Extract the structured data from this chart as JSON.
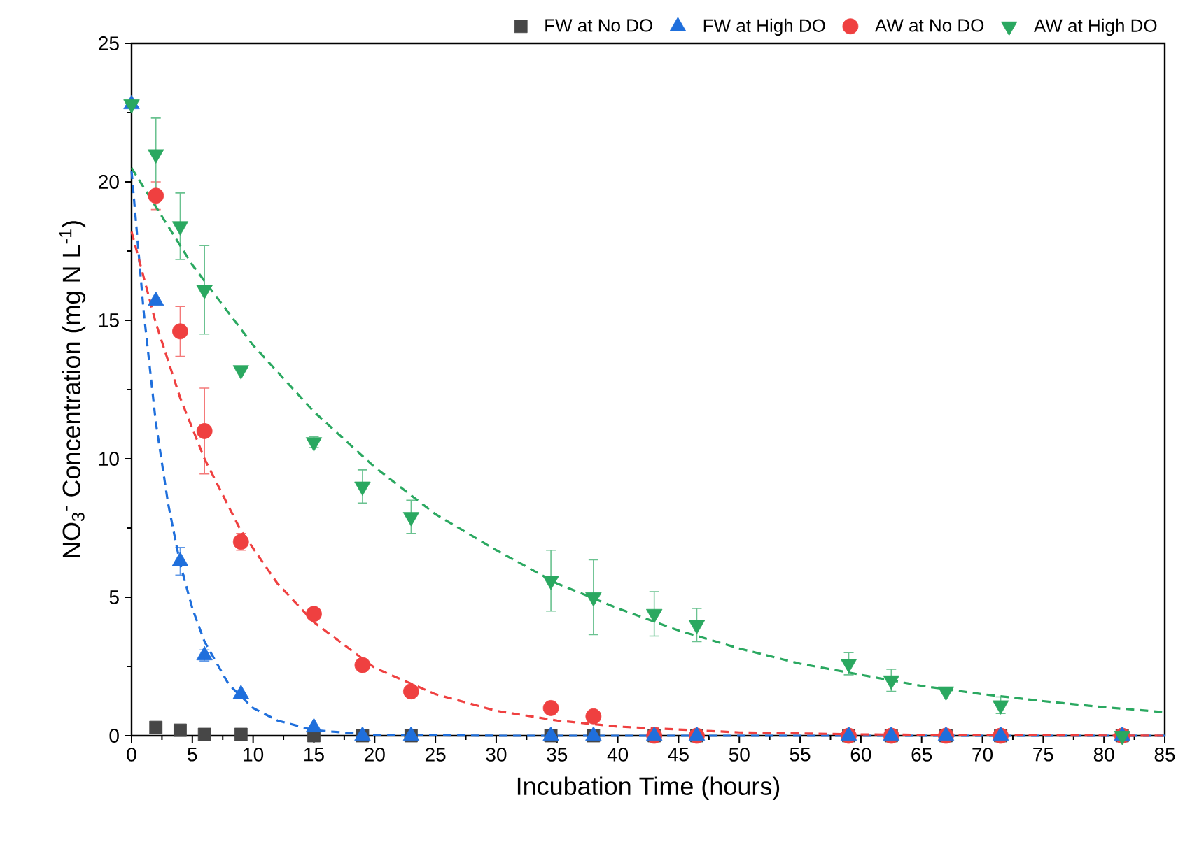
{
  "chart_data": {
    "type": "scatter",
    "xlabel": "Incubation Time (hours)",
    "ylabel": "NO$_{3}$$^{-}$ Concentration (mg N L$^{-1}$)",
    "x": [
      0,
      2,
      4,
      6,
      9,
      15,
      19,
      23,
      34.5,
      38,
      43,
      46.5,
      59,
      62.5,
      67,
      71.5,
      81.5
    ],
    "series": [
      {
        "name": "FW at No DO",
        "color": "#474747",
        "marker": "square",
        "values": [
          null,
          0.3,
          0.2,
          0.05,
          0.05,
          0,
          0,
          0,
          0,
          0,
          0,
          0,
          0,
          0,
          0,
          0,
          0
        ]
      },
      {
        "name": "FW at High DO",
        "color": "#1f6fdc",
        "marker": "triangle",
        "values": [
          22.8,
          15.7,
          6.3,
          2.9,
          1.5,
          0.3,
          0,
          0,
          0,
          0,
          0,
          0,
          0,
          0,
          0,
          0,
          0
        ],
        "errors": [
          null,
          null,
          0.5,
          0.2,
          null,
          null,
          null,
          null,
          null,
          null,
          null,
          null,
          null,
          null,
          null,
          null,
          null
        ]
      },
      {
        "name": "AW at No DO",
        "color": "#ef4040",
        "marker": "circle",
        "values": [
          null,
          19.5,
          14.6,
          11.0,
          7.0,
          4.4,
          2.55,
          1.6,
          1.0,
          0.7,
          0,
          0,
          0,
          0,
          0,
          0,
          0
        ],
        "errors": [
          null,
          0.5,
          0.9,
          1.55,
          0.3,
          null,
          null,
          null,
          null,
          null,
          null,
          null,
          null,
          null,
          null,
          null,
          null
        ]
      },
      {
        "name": "AW at High DO",
        "color": "#2aa860",
        "marker": "triangle-down",
        "values": [
          22.8,
          21.0,
          18.4,
          16.1,
          13.2,
          10.6,
          9.0,
          7.9,
          5.6,
          5.0,
          4.4,
          4.0,
          2.6,
          2.0,
          1.6,
          1.1,
          0
        ],
        "errors": [
          null,
          1.3,
          1.2,
          1.6,
          null,
          0.2,
          0.6,
          0.6,
          1.1,
          1.35,
          0.8,
          0.6,
          0.4,
          0.4,
          null,
          0.3,
          null
        ]
      },
      {
        "type": "line",
        "color": "#1f6fdc",
        "line_style": "dashed",
        "marker": "none",
        "x": [
          0,
          1,
          2,
          3,
          4,
          5,
          6,
          8,
          10,
          12,
          15,
          20,
          30,
          85
        ],
        "values": [
          20.4,
          15.3,
          11.3,
          8.4,
          6.2,
          4.6,
          3.4,
          1.85,
          1.0,
          0.55,
          0.2,
          0.03,
          0,
          0
        ]
      },
      {
        "type": "line",
        "color": "#ef4040",
        "line_style": "dashed",
        "marker": "none",
        "x": [
          0,
          2,
          4,
          6,
          9,
          12,
          15,
          20,
          25,
          30,
          35,
          40,
          50,
          60,
          70,
          85
        ],
        "values": [
          18.2,
          14.9,
          12.2,
          10.0,
          7.4,
          5.5,
          4.1,
          2.45,
          1.5,
          0.9,
          0.55,
          0.33,
          0.12,
          0.05,
          0.02,
          0
        ]
      },
      {
        "type": "line",
        "color": "#2aa860",
        "line_style": "dashed",
        "marker": "none",
        "x": [
          0,
          5,
          10,
          15,
          20,
          25,
          30,
          35,
          40,
          45,
          50,
          55,
          60,
          65,
          70,
          75,
          80,
          85
        ],
        "values": [
          20.5,
          17.0,
          14.1,
          11.7,
          9.7,
          8.0,
          6.7,
          5.5,
          4.6,
          3.8,
          3.15,
          2.6,
          2.2,
          1.8,
          1.5,
          1.25,
          1.03,
          0.85
        ]
      }
    ],
    "xlim": [
      0,
      85
    ],
    "ylim": [
      0,
      25
    ],
    "xticks": [
      0,
      5,
      10,
      15,
      20,
      25,
      30,
      35,
      40,
      45,
      50,
      55,
      60,
      65,
      70,
      75,
      80,
      85
    ],
    "yticks": [
      0,
      5,
      10,
      15,
      20,
      25
    ],
    "legend": "top"
  }
}
